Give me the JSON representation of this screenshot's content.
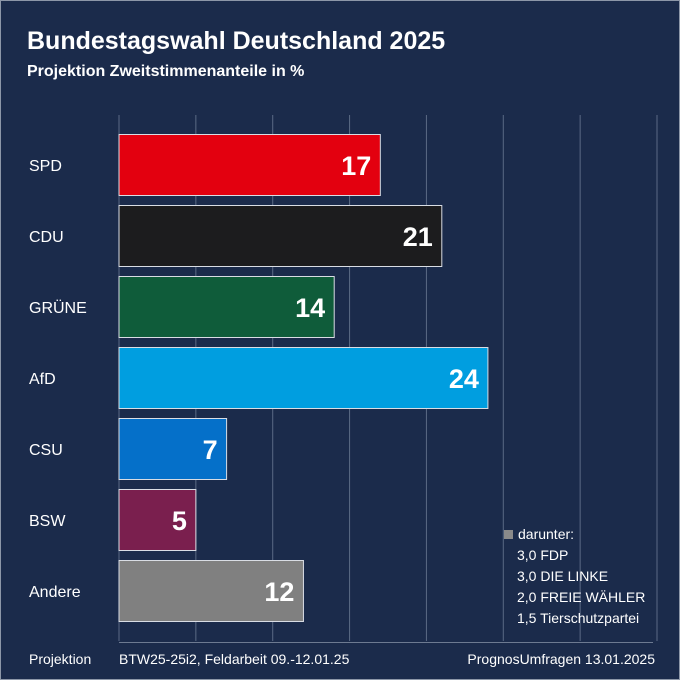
{
  "colors": {
    "background": "#1b2b4b",
    "grid": "#5b6a85"
  },
  "chart_data": {
    "type": "bar",
    "orientation": "horizontal",
    "title": "Bundestagswahl Deutschland 2025",
    "subtitle": "Projektion Zweitstimmenanteile in %",
    "categories": [
      "SPD",
      "CDU",
      "GRÜNE",
      "AfD",
      "CSU",
      "BSW",
      "Andere"
    ],
    "values": [
      17,
      21,
      14,
      24,
      7,
      5,
      12
    ],
    "bar_colors": [
      "#e3000f",
      "#1c1c1e",
      "#0f5c3a",
      "#009ee0",
      "#0570c9",
      "#7a1f4e",
      "#808080"
    ],
    "xlim": [
      0,
      35
    ],
    "grid": true
  },
  "note": {
    "header": "darunter:",
    "items": [
      "3,0 FDP",
      "3,0 DIE LINKE",
      "2,0 FREIE WÄHLER",
      "1,5 Tierschutzpartei"
    ]
  },
  "footer": {
    "left": "Projektion",
    "middle": "BTW25-25i2, Feldarbeit 09.-12.01.25",
    "right": "PrognosUmfragen 13.01.2025"
  }
}
